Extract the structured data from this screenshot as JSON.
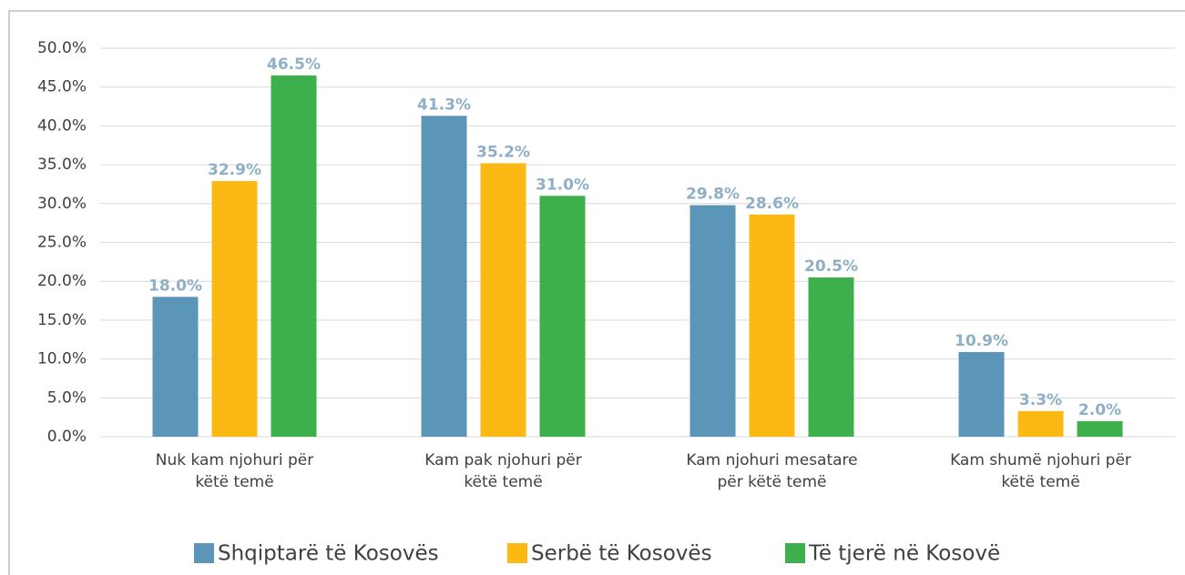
{
  "chart_data": {
    "type": "bar",
    "categories": [
      "Nuk kam njohuri për këtë temë",
      "Kam pak njohuri për këtë temë",
      "Kam njohuri mesatare për këtë temë",
      "Kam shumë njohuri për këtë temë"
    ],
    "series": [
      {
        "name": "Shqiptarë të Kosovës",
        "color": "#5b96b8",
        "values": [
          18.0,
          41.3,
          29.8,
          10.9
        ],
        "value_labels": [
          "18.0%",
          "41.3%",
          "29.8%",
          "10.9%"
        ]
      },
      {
        "name": "Serbë të Kosovës",
        "color": "#fdb913",
        "values": [
          32.9,
          35.2,
          28.6,
          3.3
        ],
        "value_labels": [
          "32.9%",
          "35.2%",
          "28.6%",
          "3.3%"
        ]
      },
      {
        "name": "Të tjerë në Kosovë",
        "color": "#3db04b",
        "values": [
          46.5,
          31.0,
          20.5,
          2.0
        ],
        "value_labels": [
          "46.5%",
          "31.0%",
          "20.5%",
          "2.0%"
        ]
      }
    ],
    "ylim": [
      0,
      50
    ],
    "yticks": [
      {
        "value": 0,
        "label": "0.0%"
      },
      {
        "value": 5,
        "label": "5.0%"
      },
      {
        "value": 10,
        "label": "10.0%"
      },
      {
        "value": 15,
        "label": "15.0%"
      },
      {
        "value": 20,
        "label": "20.0%"
      },
      {
        "value": 25,
        "label": "25.0%"
      },
      {
        "value": 30,
        "label": "30.0%"
      },
      {
        "value": 35,
        "label": "35.0%"
      },
      {
        "value": 40,
        "label": "40.0%"
      },
      {
        "value": 45,
        "label": "45.0%"
      },
      {
        "value": 50,
        "label": "50.0%"
      }
    ],
    "grid": true,
    "legend": "bottom"
  }
}
